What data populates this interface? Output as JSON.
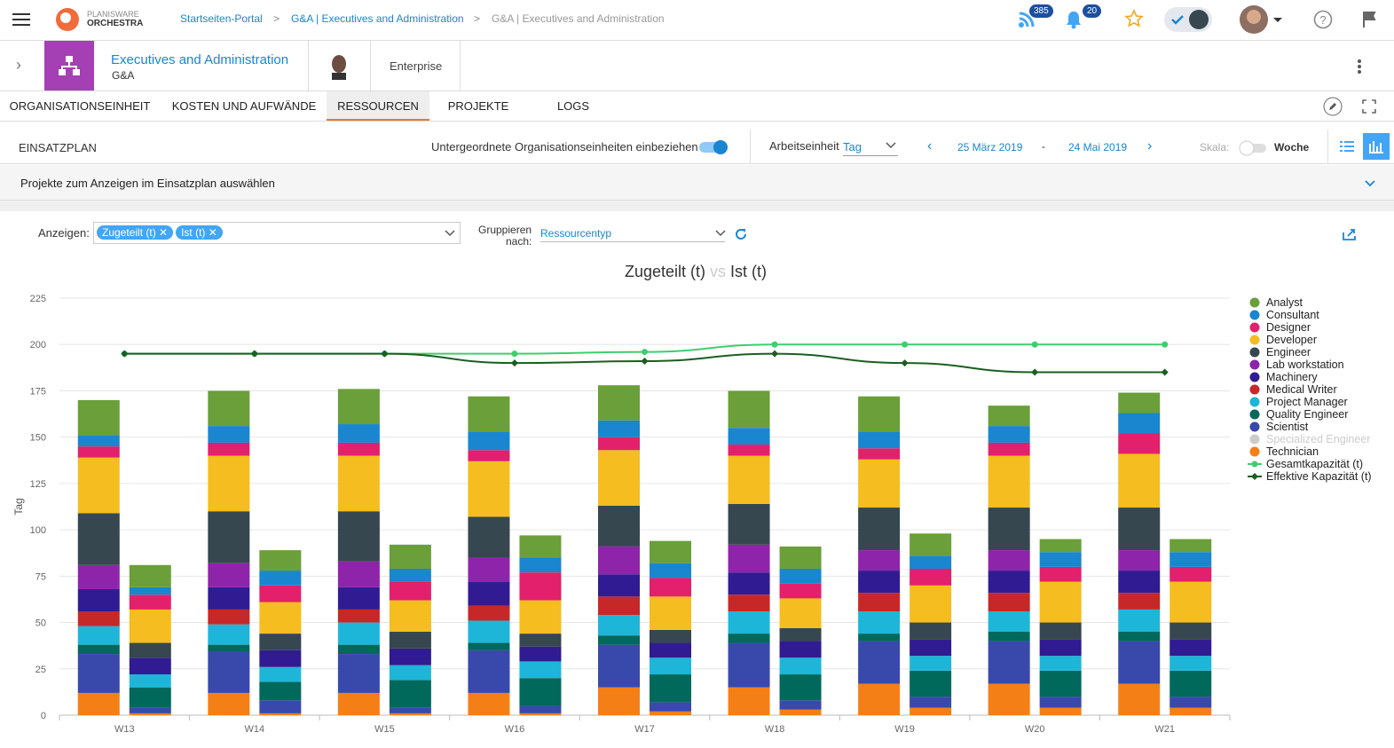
{
  "header": {
    "logo_top": "PLANISWARE",
    "logo_bottom": "ORCHESTRA",
    "breadcrumbs": [
      "Startseiten-Portal",
      "G&A | Executives and Administration",
      "G&A | Executives and Administration"
    ],
    "feed_badge": "385",
    "notification_badge": "20"
  },
  "entity": {
    "title": "Executives and Administration",
    "subtitle": "G&A",
    "type": "Enterprise"
  },
  "tabs": {
    "items": [
      "ORGANISATIONSEINHEIT",
      "KOSTEN UND AUFWÄNDE",
      "RESSOURCEN",
      "PROJEKTE",
      "LOGS"
    ],
    "active": 2
  },
  "toolbar": {
    "title": "EINSATZPLAN",
    "include_sub_units": "Untergeordnete Organisationseinheiten einbeziehen",
    "unit_label": "Arbeitseinheit",
    "unit_value": "Tag",
    "date_from": "25 März 2019",
    "date_sep": "-",
    "date_to": "24 Mai 2019",
    "scale_label": "Skala:",
    "scale_value": "Woche"
  },
  "projects_bar": "Projekte zum Anzeigen im Einsatzplan auswählen",
  "filters": {
    "show_label": "Anzeigen:",
    "group_label_1": "Gruppieren",
    "group_label_2": "nach:",
    "group_value": "Ressourcentyp"
  },
  "chart_data": {
    "type": "stacked-bar",
    "title_vs": "vs",
    "ylabel": "Tag",
    "categories": [
      "W13",
      "W14",
      "W15",
      "W16",
      "W17",
      "W18",
      "W19",
      "W20",
      "W21"
    ],
    "ylim": [
      0,
      225
    ],
    "yticks": [
      0,
      25,
      50,
      75,
      100,
      125,
      150,
      175,
      200,
      225
    ],
    "grid": true,
    "legend": "right",
    "stacks": [
      {
        "name": "Zugeteilt (t)",
        "series": [
          {
            "name": "Analyst",
            "color": "#6a9f3a",
            "values": [
              19,
              19,
              19,
              19,
              19,
              20,
              19,
              11,
              11
            ]
          },
          {
            "name": "Consultant",
            "color": "#1a86d0",
            "values": [
              6,
              9,
              10,
              10,
              9,
              9,
              9,
              9,
              11
            ]
          },
          {
            "name": "Designer",
            "color": "#e3206b",
            "values": [
              6,
              7,
              7,
              6,
              7,
              6,
              6,
              7,
              11
            ]
          },
          {
            "name": "Developer",
            "color": "#f5bd1f",
            "values": [
              30,
              30,
              30,
              30,
              30,
              26,
              26,
              28,
              29
            ]
          },
          {
            "name": "Engineer",
            "color": "#37474f",
            "values": [
              28,
              28,
              27,
              22,
              22,
              22,
              23,
              23,
              23
            ]
          },
          {
            "name": "Lab workstation",
            "color": "#8e24aa",
            "values": [
              13,
              13,
              14,
              13,
              15,
              15,
              11,
              11,
              11
            ]
          },
          {
            "name": "Machinery",
            "color": "#311b92",
            "values": [
              12,
              12,
              12,
              13,
              12,
              12,
              12,
              12,
              12
            ]
          },
          {
            "name": "Medical Writer",
            "color": "#c62828",
            "values": [
              8,
              8,
              7,
              8,
              10,
              9,
              10,
              10,
              9
            ]
          },
          {
            "name": "Project Manager",
            "color": "#1eb6d8",
            "values": [
              10,
              11,
              12,
              12,
              11,
              12,
              12,
              11,
              12
            ]
          },
          {
            "name": "Quality Engineer",
            "color": "#00695c",
            "values": [
              5,
              4,
              5,
              4,
              5,
              5,
              4,
              5,
              5
            ]
          },
          {
            "name": "Scientist",
            "color": "#3949ab",
            "values": [
              21,
              22,
              21,
              23,
              23,
              24,
              23,
              23,
              23
            ]
          },
          {
            "name": "Specialized Engineer",
            "color": "#cccccc",
            "visible": false,
            "values": [
              null,
              null,
              null,
              null,
              null,
              null,
              null,
              null,
              null
            ]
          },
          {
            "name": "Technician",
            "color": "#f57f17",
            "values": [
              12,
              12,
              12,
              12,
              15,
              15,
              17,
              17,
              17
            ]
          }
        ]
      },
      {
        "name": "Ist (t)",
        "series": [
          {
            "name": "Analyst",
            "color": "#6a9f3a",
            "values": [
              12,
              11,
              13,
              12,
              12,
              12,
              12,
              7,
              7
            ]
          },
          {
            "name": "Consultant",
            "color": "#1a86d0",
            "values": [
              4,
              8,
              7,
              8,
              8,
              8,
              7,
              8,
              8
            ]
          },
          {
            "name": "Designer",
            "color": "#e3206b",
            "values": [
              8,
              9,
              10,
              15,
              10,
              8,
              9,
              8,
              8
            ]
          },
          {
            "name": "Developer",
            "color": "#f5bd1f",
            "values": [
              18,
              17,
              17,
              18,
              18,
              16,
              20,
              22,
              22
            ]
          },
          {
            "name": "Engineer",
            "color": "#37474f",
            "values": [
              8,
              9,
              9,
              7,
              7,
              7,
              9,
              9,
              9
            ]
          },
          {
            "name": "Lab workstation",
            "color": "#8e24aa",
            "values": [
              0,
              0,
              0,
              0,
              0,
              0,
              0,
              0,
              0
            ]
          },
          {
            "name": "Machinery",
            "color": "#311b92",
            "values": [
              9,
              9,
              9,
              8,
              8,
              9,
              9,
              9,
              9
            ]
          },
          {
            "name": "Medical Writer",
            "color": "#c62828",
            "values": [
              0,
              0,
              0,
              0,
              0,
              0,
              0,
              0,
              0
            ]
          },
          {
            "name": "Project Manager",
            "color": "#1eb6d8",
            "values": [
              7,
              8,
              8,
              9,
              9,
              9,
              8,
              8,
              8
            ]
          },
          {
            "name": "Quality Engineer",
            "color": "#00695c",
            "values": [
              11,
              10,
              15,
              15,
              15,
              14,
              14,
              14,
              14
            ]
          },
          {
            "name": "Scientist",
            "color": "#3949ab",
            "values": [
              3,
              7,
              3,
              4,
              5,
              5,
              6,
              6,
              6
            ]
          },
          {
            "name": "Specialized Engineer",
            "color": "#cccccc",
            "visible": false,
            "values": [
              null,
              null,
              null,
              null,
              null,
              null,
              null,
              null,
              null
            ]
          },
          {
            "name": "Technician",
            "color": "#f57f17",
            "values": [
              1,
              1,
              1,
              1,
              2,
              3,
              4,
              4,
              4
            ]
          }
        ]
      }
    ],
    "lines": [
      {
        "name": "Gesamtkapazität (t)",
        "color": "#3ccf6e",
        "values": [
          195,
          195,
          195,
          195,
          196,
          200,
          200,
          200,
          200
        ]
      },
      {
        "name": "Effektive Kapazität (t)",
        "color": "#1b5e20",
        "values": [
          195,
          195,
          195,
          190,
          191,
          195,
          190,
          185,
          185
        ]
      }
    ]
  }
}
